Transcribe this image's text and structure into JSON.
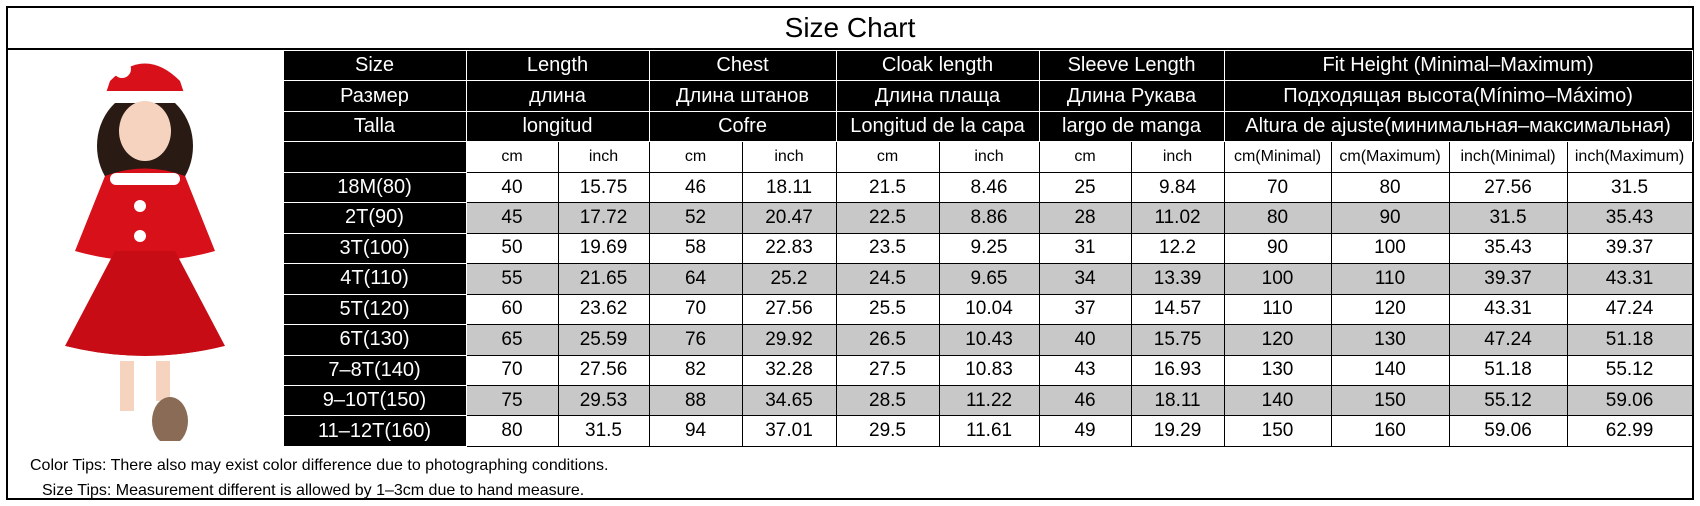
{
  "title": "Size Chart",
  "header_rows": [
    [
      "Size",
      "Length",
      "Chest",
      "Cloak length",
      "Sleeve Length",
      "Fit Height (Minimal–Maximum)"
    ],
    [
      "Размер",
      "длина",
      "Длина штанов",
      "Длина плаща",
      "Длина Рукава",
      "Подходящая высота(Mínimo–Máximo)"
    ],
    [
      "Talla",
      "longitud",
      "Cofre",
      "Longitud de la capa",
      "largo de manga",
      "Altura de ajuste(минимальная–максимальная)"
    ]
  ],
  "units": [
    "cm",
    "inch",
    "cm",
    "inch",
    "cm",
    "inch",
    "cm",
    "inch",
    "cm(Minimal)",
    "cm(Maximum)",
    "inch(Minimal)",
    "inch(Maximum)"
  ],
  "rows": [
    [
      "18M(80)",
      40,
      15.75,
      46,
      18.11,
      21.5,
      8.46,
      25,
      9.84,
      70,
      80,
      27.56,
      31.5
    ],
    [
      "2T(90)",
      45,
      17.72,
      52,
      20.47,
      22.5,
      8.86,
      28,
      11.02,
      80,
      90,
      31.5,
      35.43
    ],
    [
      "3T(100)",
      50,
      19.69,
      58,
      22.83,
      23.5,
      9.25,
      31,
      12.2,
      90,
      100,
      35.43,
      39.37
    ],
    [
      "4T(110)",
      55,
      21.65,
      64,
      25.2,
      24.5,
      9.65,
      34,
      13.39,
      100,
      110,
      39.37,
      43.31
    ],
    [
      "5T(120)",
      60,
      23.62,
      70,
      27.56,
      25.5,
      10.04,
      37,
      14.57,
      110,
      120,
      43.31,
      47.24
    ],
    [
      "6T(130)",
      65,
      25.59,
      76,
      29.92,
      26.5,
      10.43,
      40,
      15.75,
      120,
      130,
      47.24,
      51.18
    ],
    [
      "7–8T(140)",
      70,
      27.56,
      82,
      32.28,
      27.5,
      10.83,
      43,
      16.93,
      130,
      140,
      51.18,
      55.12
    ],
    [
      "9–10T(150)",
      75,
      29.53,
      88,
      34.65,
      28.5,
      11.22,
      46,
      18.11,
      140,
      150,
      55.12,
      59.06
    ],
    [
      "11–12T(160)",
      80,
      31.5,
      94,
      37.01,
      29.5,
      11.61,
      49,
      19.29,
      150,
      160,
      59.06,
      62.99
    ]
  ],
  "notes": [
    "Color Tips: There also may exist color difference due to photographing conditions.",
    "Size Tips: Measurement different is allowed by 1–3cm due to hand measure."
  ]
}
